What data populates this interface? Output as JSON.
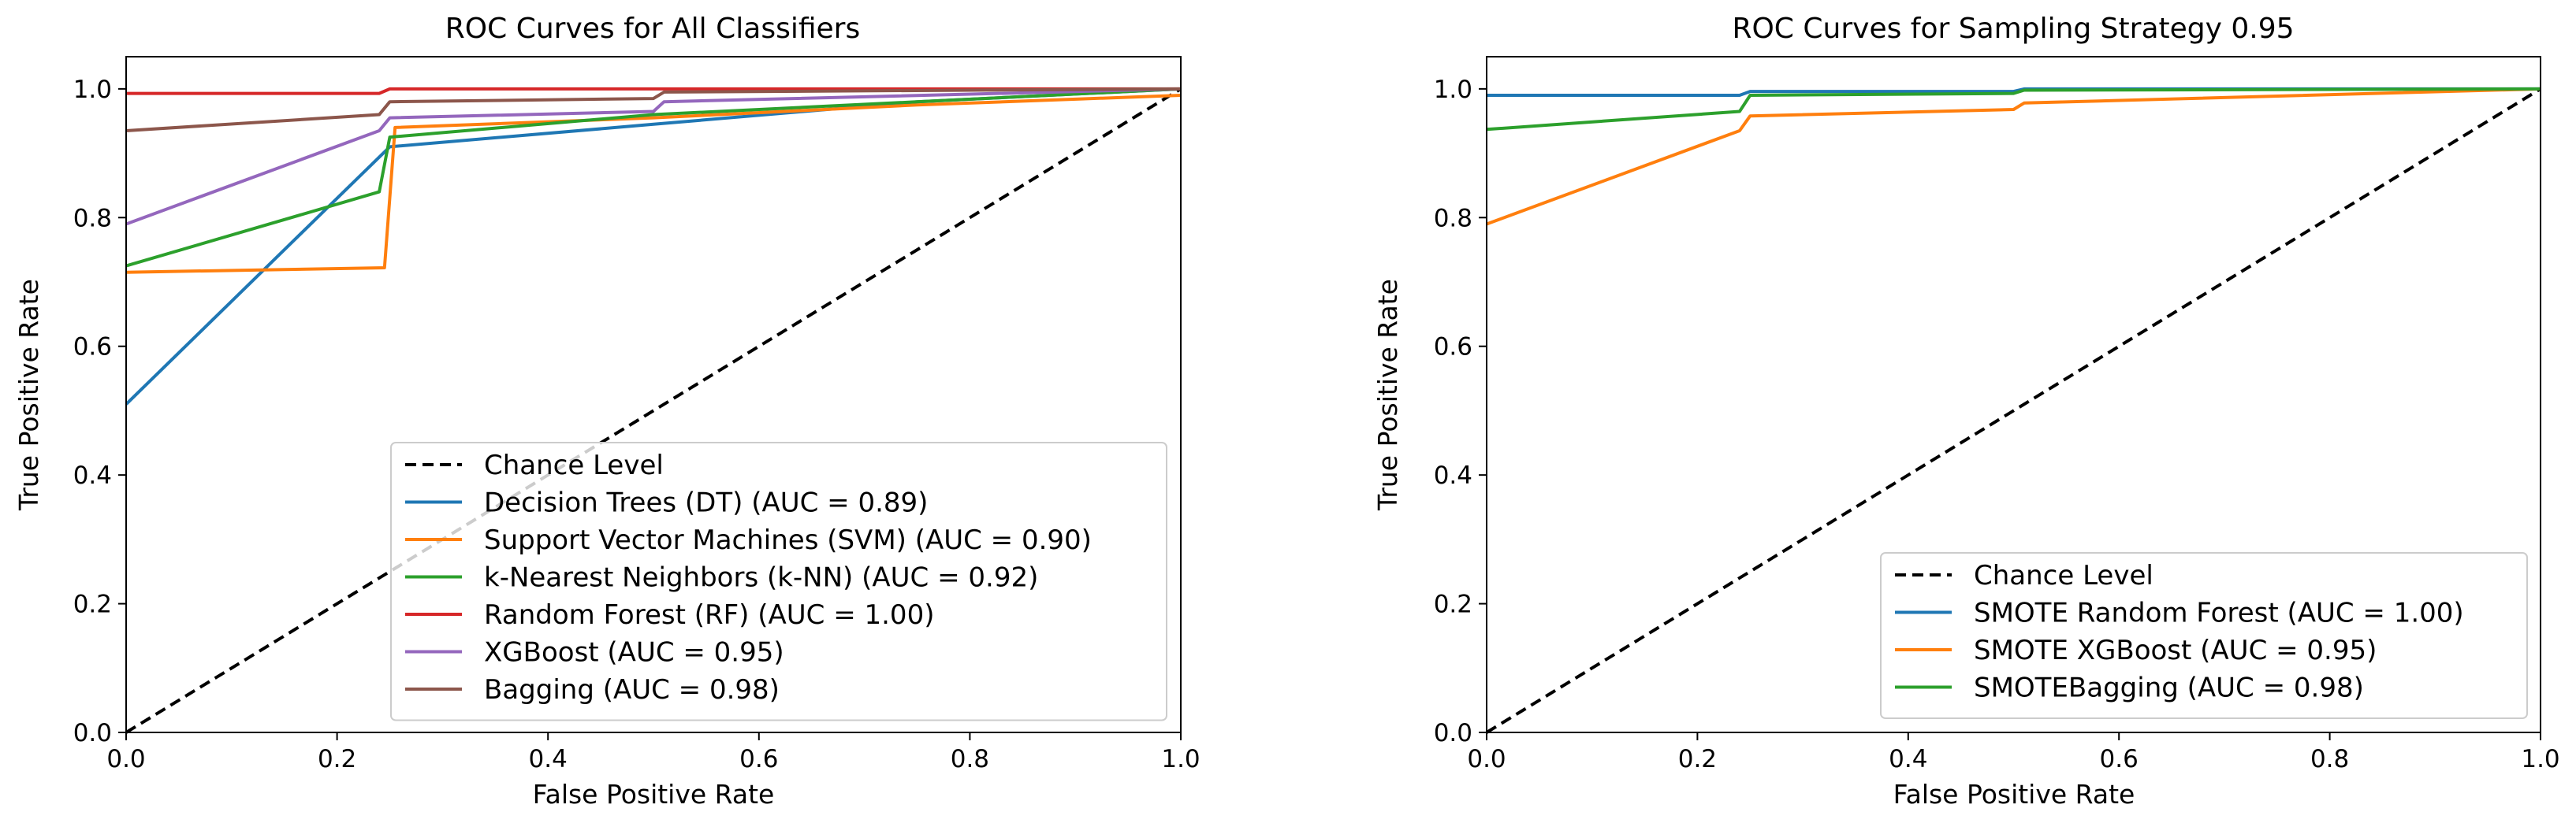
{
  "chart_data": [
    {
      "type": "line",
      "title": "ROC Curves for All Classifiers",
      "xlabel": "False Positive Rate",
      "ylabel": "True Positive Rate",
      "xlim": [
        0.0,
        1.0
      ],
      "ylim": [
        0.0,
        1.05
      ],
      "xticks": [
        "0.0",
        "0.2",
        "0.4",
        "0.6",
        "0.8",
        "1.0"
      ],
      "yticks": [
        "0.0",
        "0.2",
        "0.4",
        "0.6",
        "0.8",
        "1.0"
      ],
      "legend_position": "lower-right",
      "series": [
        {
          "name": "Chance Level",
          "color": "#000000",
          "dashed": true,
          "x": [
            0,
            1
          ],
          "y": [
            0,
            1
          ]
        },
        {
          "name": "Decision Trees (DT) (AUC = 0.89)",
          "color": "#1f77b4",
          "x": [
            0,
            0.25,
            0.5,
            0.75,
            1.0
          ],
          "y": [
            0.51,
            0.91,
            0.945,
            0.98,
            1.0
          ]
        },
        {
          "name": "Support Vector Machines (SVM) (AUC = 0.90)",
          "color": "#ff7f0e",
          "x": [
            0,
            0.245,
            0.255,
            0.5,
            0.75,
            1.0
          ],
          "y": [
            0.715,
            0.722,
            0.94,
            0.955,
            0.975,
            0.99
          ]
        },
        {
          "name": "k-Nearest Neighbors (k-NN) (AUC = 0.92)",
          "color": "#2ca02c",
          "x": [
            0,
            0.24,
            0.25,
            0.5,
            1.0
          ],
          "y": [
            0.725,
            0.84,
            0.925,
            0.96,
            1.0
          ]
        },
        {
          "name": "Random Forest (RF) (AUC = 1.00)",
          "color": "#d62728",
          "x": [
            0,
            0.24,
            0.25,
            1.0
          ],
          "y": [
            0.993,
            0.993,
            1.0,
            1.0
          ]
        },
        {
          "name": "XGBoost (AUC = 0.95)",
          "color": "#9467bd",
          "x": [
            0,
            0.24,
            0.25,
            0.5,
            0.51,
            1.0
          ],
          "y": [
            0.79,
            0.935,
            0.955,
            0.965,
            0.98,
            1.0
          ]
        },
        {
          "name": "Bagging (AUC = 0.98)",
          "color": "#8c564b",
          "x": [
            0,
            0.24,
            0.25,
            0.5,
            0.51,
            1.0
          ],
          "y": [
            0.935,
            0.96,
            0.98,
            0.985,
            0.995,
            1.0
          ]
        }
      ]
    },
    {
      "type": "line",
      "title": "ROC Curves for Sampling Strategy 0.95",
      "xlabel": "False Positive Rate",
      "ylabel": "True Positive Rate",
      "xlim": [
        0.0,
        1.0
      ],
      "ylim": [
        0.0,
        1.05
      ],
      "xticks": [
        "0.0",
        "0.2",
        "0.4",
        "0.6",
        "0.8",
        "1.0"
      ],
      "yticks": [
        "0.0",
        "0.2",
        "0.4",
        "0.6",
        "0.8",
        "1.0"
      ],
      "legend_position": "lower-right",
      "series": [
        {
          "name": "Chance Level",
          "color": "#000000",
          "dashed": true,
          "x": [
            0,
            1
          ],
          "y": [
            0,
            1
          ]
        },
        {
          "name": "SMOTE Random Forest (AUC = 1.00)",
          "color": "#1f77b4",
          "x": [
            0,
            0.24,
            0.25,
            0.5,
            0.51,
            1.0
          ],
          "y": [
            0.99,
            0.99,
            0.996,
            0.996,
            1.0,
            1.0
          ]
        },
        {
          "name": "SMOTE XGBoost (AUC = 0.95)",
          "color": "#ff7f0e",
          "x": [
            0,
            0.24,
            0.25,
            0.5,
            0.51,
            1.0
          ],
          "y": [
            0.79,
            0.935,
            0.958,
            0.968,
            0.978,
            1.0
          ]
        },
        {
          "name": "SMOTEBagging (AUC = 0.98)",
          "color": "#2ca02c",
          "x": [
            0,
            0.24,
            0.25,
            0.5,
            0.51,
            1.0
          ],
          "y": [
            0.937,
            0.965,
            0.99,
            0.993,
            0.998,
            1.0
          ]
        }
      ]
    }
  ]
}
